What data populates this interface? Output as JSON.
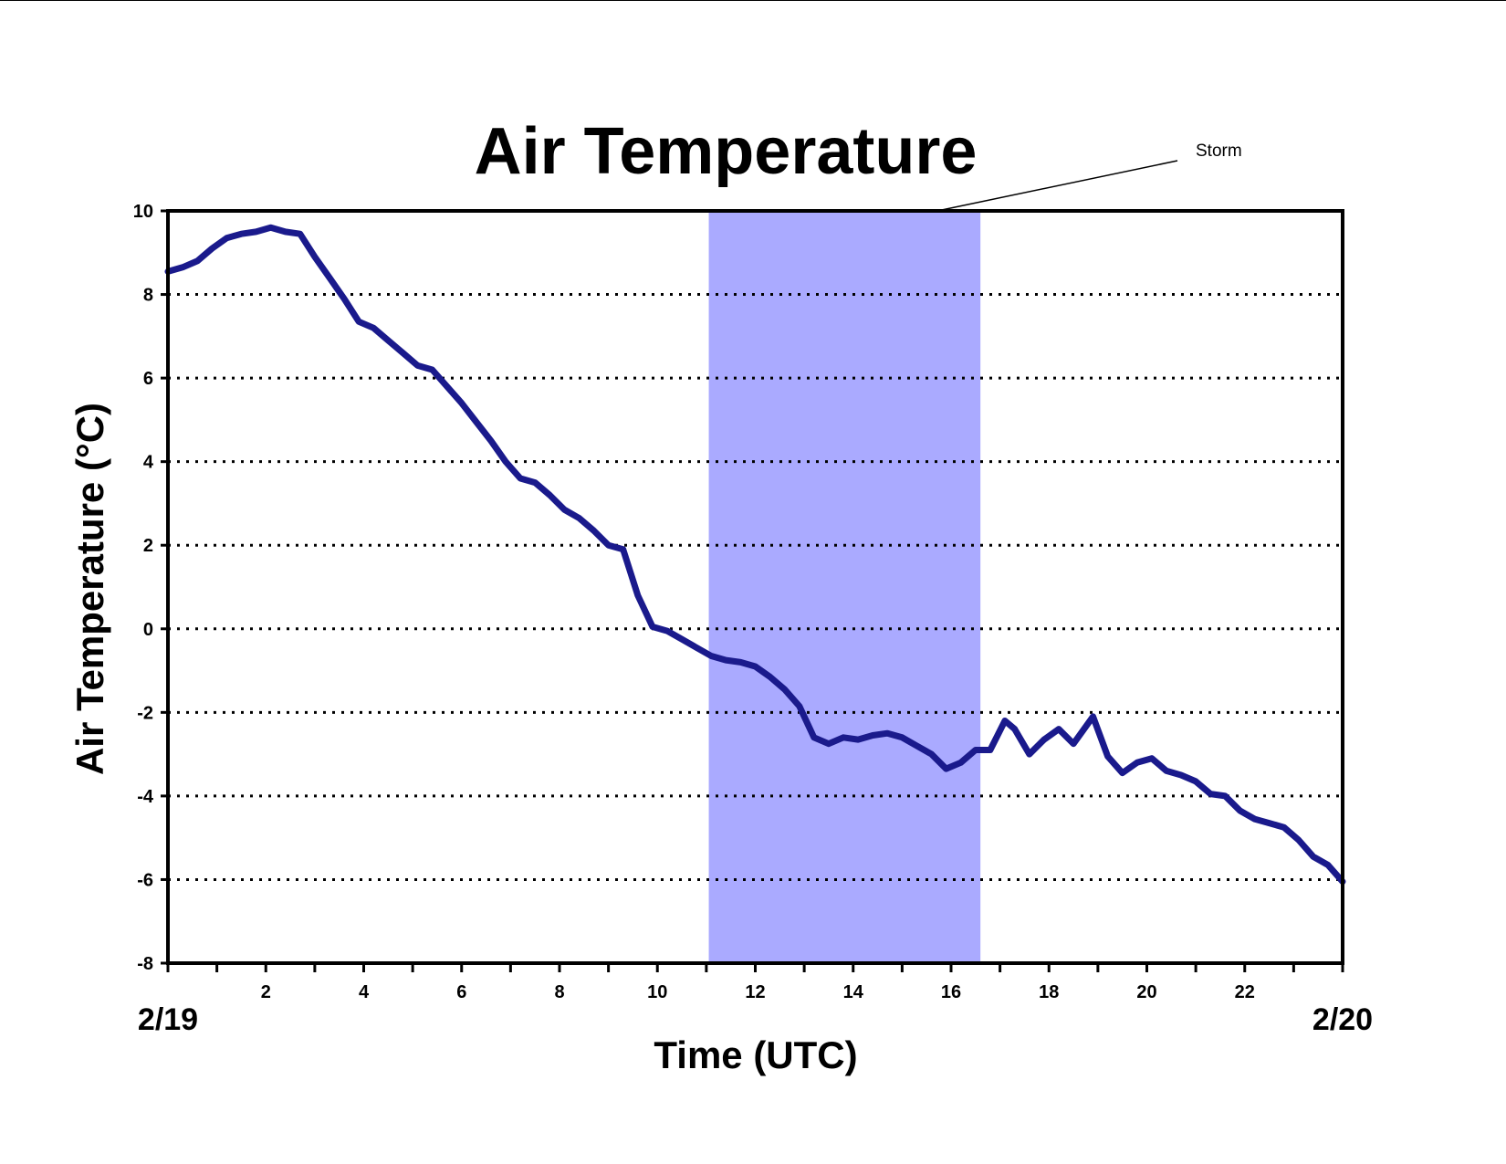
{
  "chart_data": {
    "type": "line",
    "title": "Air Temperature",
    "xlabel": "Time (UTC)",
    "ylabel": "Air Temperature (°C)",
    "xlim": [
      0,
      24
    ],
    "ylim": [
      -8,
      10
    ],
    "x_ticks": [
      2,
      4,
      6,
      8,
      10,
      12,
      14,
      16,
      18,
      20,
      22
    ],
    "y_ticks": [
      10,
      8,
      6,
      4,
      2,
      0,
      -2,
      -4,
      -6,
      -8
    ],
    "date_labels": {
      "start": "2/19",
      "end": "2/20"
    },
    "grid": "horizontal dotted",
    "legend": "none",
    "series_color": "#1a1a8c",
    "annotation": {
      "text": "Storm",
      "x_start": 11.05,
      "x_end": 16.6,
      "color": "#aaaaff"
    },
    "series": [
      {
        "x": [
          0,
          0.3,
          0.6,
          0.9,
          1.2,
          1.5,
          1.8,
          2.1,
          2.4,
          2.7,
          3.0,
          3.3,
          3.6,
          3.9,
          4.2,
          4.5,
          4.8,
          5.1,
          5.4,
          5.7,
          6.0,
          6.3,
          6.6,
          6.9,
          7.2,
          7.5,
          7.8,
          8.1,
          8.4,
          8.7,
          9.0,
          9.3,
          9.6,
          9.9,
          10.2,
          10.5,
          10.8,
          11.1,
          11.4,
          11.7,
          12.0,
          12.3,
          12.6,
          12.9,
          13.2,
          13.5,
          13.8,
          14.1,
          14.4,
          14.7,
          15.0,
          15.3,
          15.6,
          15.9,
          16.2,
          16.5,
          16.8,
          17.1,
          17.3,
          17.6,
          17.9,
          18.2,
          18.5,
          18.9,
          19.2,
          19.5,
          19.8,
          20.1,
          20.4,
          20.7,
          21.0,
          21.3,
          21.6,
          21.9,
          22.2,
          22.5,
          22.8,
          23.1,
          23.4,
          23.7,
          24.0
        ],
        "y": [
          8.55,
          8.65,
          8.8,
          9.1,
          9.35,
          9.45,
          9.5,
          9.6,
          9.5,
          9.45,
          8.9,
          8.4,
          7.9,
          7.35,
          7.2,
          6.9,
          6.6,
          6.3,
          6.2,
          5.8,
          5.4,
          4.95,
          4.5,
          4.0,
          3.6,
          3.5,
          3.2,
          2.85,
          2.65,
          2.35,
          2.0,
          1.9,
          0.8,
          0.05,
          -0.05,
          -0.25,
          -0.45,
          -0.65,
          -0.75,
          -0.8,
          -0.9,
          -1.15,
          -1.45,
          -1.85,
          -2.6,
          -2.75,
          -2.6,
          -2.65,
          -2.55,
          -2.5,
          -2.6,
          -2.8,
          -3.0,
          -3.35,
          -3.2,
          -2.9,
          -2.9,
          -2.2,
          -2.4,
          -3.0,
          -2.65,
          -2.4,
          -2.75,
          -2.1,
          -3.05,
          -3.45,
          -3.2,
          -3.1,
          -3.4,
          -3.5,
          -3.65,
          -3.95,
          -4.0,
          -4.35,
          -4.55,
          -4.65,
          -4.75,
          -5.05,
          -5.45,
          -5.65,
          -6.05
        ]
      }
    ]
  }
}
